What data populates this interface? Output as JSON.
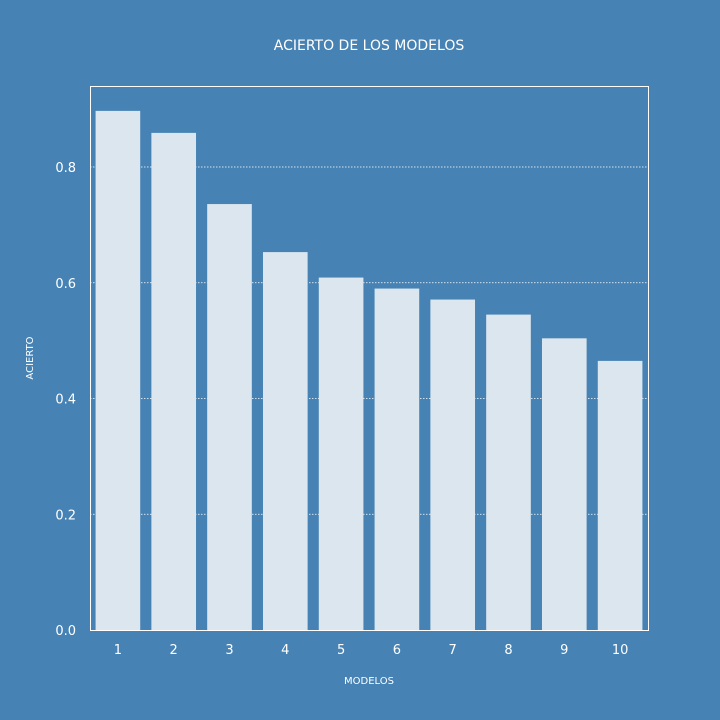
{
  "colors": {
    "background": "#4682b4",
    "bar": "#dbe6ef",
    "axes": "#ffffff",
    "grid": "#ffffff",
    "text": "#ffffff"
  },
  "chart_data": {
    "type": "bar",
    "title": "ACIERTO DE LOS MODELOS",
    "xlabel": "MODELOS",
    "ylabel": "ACIERTO",
    "categories": [
      "1",
      "2",
      "3",
      "4",
      "5",
      "6",
      "7",
      "8",
      "9",
      "10"
    ],
    "values": [
      0.897,
      0.859,
      0.736,
      0.653,
      0.609,
      0.59,
      0.571,
      0.545,
      0.504,
      0.465
    ],
    "yticks": [
      "0.0",
      "0.2",
      "0.4",
      "0.6",
      "0.8"
    ],
    "ylim": [
      0,
      0.94
    ],
    "grid": "horizontal dotted",
    "legend": "none"
  }
}
